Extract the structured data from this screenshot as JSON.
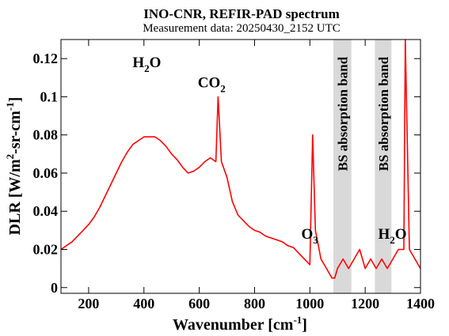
{
  "chart_data": {
    "type": "line",
    "title": "INO-CNR, REFIR-PAD spectrum",
    "subtitle": "Measurement data: 20250430_2152 UTC",
    "xlabel": {
      "main": "Wavenumber [cm",
      "sup": "-1",
      "end": "]"
    },
    "ylabel": {
      "p1": "DLR [W/m",
      "sup1": "2",
      "p2": "-sr-cm",
      "sup2": "-1",
      "p3": "]"
    },
    "xlim": [
      100,
      1400
    ],
    "ylim": [
      -0.003,
      0.13
    ],
    "x_ticks": [
      200,
      400,
      600,
      800,
      1000,
      1200,
      1400
    ],
    "x_tick_labels": [
      "200",
      "400",
      "600",
      "800",
      "1000",
      "1200",
      "1400"
    ],
    "y_ticks": [
      0,
      0.02,
      0.04,
      0.06,
      0.08,
      0.1,
      0.12
    ],
    "y_tick_labels": [
      "0",
      "0.02",
      "0.04",
      "0.06",
      "0.08",
      "0.1",
      "0.12"
    ],
    "grid": false,
    "series_color": "#ff0000",
    "band_color": "#d9d9d9",
    "bands": [
      {
        "x0": 1085,
        "x1": 1150,
        "label": "BS absorption band"
      },
      {
        "x0": 1235,
        "x1": 1295,
        "label": "BS absorption band"
      }
    ],
    "annotations": [
      {
        "id": "h2o-left",
        "x": 462,
        "y": 0.1155,
        "main": "H",
        "sub": "2",
        "tail": "O"
      },
      {
        "id": "co2",
        "x": 695,
        "y": 0.105,
        "main": "CO",
        "sub": "2",
        "tail": ""
      },
      {
        "id": "o3",
        "x": 1030,
        "y": 0.0255,
        "main": "O",
        "sub": "3",
        "tail": ""
      },
      {
        "id": "h2o-right",
        "x": 1350,
        "y": 0.0255,
        "main": "H",
        "sub": "2",
        "tail": "O"
      }
    ],
    "series": [
      {
        "x": [
          100,
          120,
          140,
          160,
          180,
          200,
          220,
          240,
          260,
          280,
          300,
          320,
          340,
          360,
          380,
          400,
          420,
          440,
          460,
          480,
          500,
          520,
          540,
          560,
          580,
          600,
          620,
          640,
          660,
          668,
          680,
          700,
          720,
          740,
          760,
          780,
          800,
          820,
          840,
          860,
          880,
          900,
          920,
          940,
          960,
          980,
          1000,
          1010,
          1020,
          1040,
          1060,
          1080,
          1090,
          1100,
          1120,
          1140,
          1160,
          1180,
          1200,
          1220,
          1240,
          1260,
          1280,
          1300,
          1320,
          1340,
          1345,
          1360,
          1380,
          1400
        ],
        "y": [
          0.02,
          0.022,
          0.024,
          0.027,
          0.03,
          0.033,
          0.037,
          0.042,
          0.048,
          0.054,
          0.06,
          0.066,
          0.071,
          0.075,
          0.077,
          0.079,
          0.079,
          0.079,
          0.077,
          0.074,
          0.07,
          0.067,
          0.063,
          0.06,
          0.061,
          0.063,
          0.066,
          0.068,
          0.066,
          0.1,
          0.066,
          0.058,
          0.045,
          0.038,
          0.035,
          0.032,
          0.03,
          0.029,
          0.027,
          0.026,
          0.025,
          0.024,
          0.022,
          0.021,
          0.018,
          0.015,
          0.012,
          0.08,
          0.03,
          0.015,
          0.01,
          0.005,
          0.005,
          0.01,
          0.015,
          0.01,
          0.015,
          0.02,
          0.01,
          0.015,
          0.01,
          0.015,
          0.01,
          0.015,
          0.02,
          0.02,
          0.13,
          0.02,
          0.015,
          0.01
        ]
      }
    ]
  }
}
